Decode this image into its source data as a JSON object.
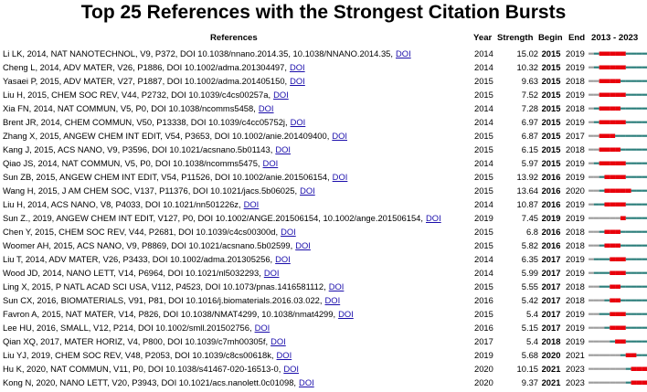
{
  "chart_data": {
    "type": "table",
    "title": "Top 25 References with the Strongest Citation Bursts",
    "columns": {
      "references": "References",
      "year": "Year",
      "strength": "Strength",
      "begin": "Begin",
      "end": "End",
      "timeline": "2013 - 2023"
    },
    "timeline_range": [
      2013,
      2023
    ],
    "doi_label": "DOI",
    "colors": {
      "baseline": "#2e7f7c",
      "burst": "#e8000b",
      "inactive": "#9e9e9e",
      "link": "#1a0dab"
    },
    "rows": [
      {
        "ref": "Li LK, 2014, NAT NANOTECHNOL, V9, P372, DOI 10.1038/nnano.2014.35, 10.1038/NNANO.2014.35,",
        "year": "2014",
        "strength": "15.02",
        "begin": "2015",
        "end": "2019"
      },
      {
        "ref": "Cheng L, 2014, ADV MATER, V26, P1886, DOI 10.1002/adma.201304497,",
        "year": "2014",
        "strength": "10.32",
        "begin": "2015",
        "end": "2019"
      },
      {
        "ref": "Yasaei P, 2015, ADV MATER, V27, P1887, DOI 10.1002/adma.201405150,",
        "year": "2015",
        "strength": "9.63",
        "begin": "2015",
        "end": "2018"
      },
      {
        "ref": "Liu H, 2015, CHEM SOC REV, V44, P2732, DOI 10.1039/c4cs00257a,",
        "year": "2015",
        "strength": "7.52",
        "begin": "2015",
        "end": "2019"
      },
      {
        "ref": "Xia FN, 2014, NAT COMMUN, V5, P0, DOI 10.1038/ncomms5458,",
        "year": "2014",
        "strength": "7.28",
        "begin": "2015",
        "end": "2018"
      },
      {
        "ref": "Brent JR, 2014, CHEM COMMUN, V50, P13338, DOI 10.1039/c4cc05752j,",
        "year": "2014",
        "strength": "6.97",
        "begin": "2015",
        "end": "2019"
      },
      {
        "ref": "Zhang X, 2015, ANGEW CHEM INT EDIT, V54, P3653, DOI 10.1002/anie.201409400,",
        "year": "2015",
        "strength": "6.87",
        "begin": "2015",
        "end": "2017"
      },
      {
        "ref": "Kang J, 2015, ACS NANO, V9, P3596, DOI 10.1021/acsnano.5b01143,",
        "year": "2015",
        "strength": "6.15",
        "begin": "2015",
        "end": "2018"
      },
      {
        "ref": "Qiao JS, 2014, NAT COMMUN, V5, P0, DOI 10.1038/ncomms5475,",
        "year": "2014",
        "strength": "5.97",
        "begin": "2015",
        "end": "2019"
      },
      {
        "ref": "Sun ZB, 2015, ANGEW CHEM INT EDIT, V54, P11526, DOI 10.1002/anie.201506154,",
        "year": "2015",
        "strength": "13.92",
        "begin": "2016",
        "end": "2019"
      },
      {
        "ref": "Wang H, 2015, J AM CHEM SOC, V137, P11376, DOI 10.1021/jacs.5b06025,",
        "year": "2015",
        "strength": "13.64",
        "begin": "2016",
        "end": "2020"
      },
      {
        "ref": "Liu H, 2014, ACS NANO, V8, P4033, DOI 10.1021/nn501226z,",
        "year": "2014",
        "strength": "10.87",
        "begin": "2016",
        "end": "2019"
      },
      {
        "ref": "Sun Z., 2019, ANGEW CHEM INT EDIT, V127, P0, DOI 10.1002/ANGE.201506154, 10.1002/ange.201506154,",
        "year": "2019",
        "strength": "7.45",
        "begin": "2019",
        "end": "2019"
      },
      {
        "ref": "Chen Y, 2015, CHEM SOC REV, V44, P2681, DOI 10.1039/c4cs00300d,",
        "year": "2015",
        "strength": "6.8",
        "begin": "2016",
        "end": "2018"
      },
      {
        "ref": "Woomer AH, 2015, ACS NANO, V9, P8869, DOI 10.1021/acsnano.5b02599,",
        "year": "2015",
        "strength": "5.82",
        "begin": "2016",
        "end": "2018"
      },
      {
        "ref": "Liu T, 2014, ADV MATER, V26, P3433, DOI 10.1002/adma.201305256,",
        "year": "2014",
        "strength": "6.35",
        "begin": "2017",
        "end": "2019"
      },
      {
        "ref": "Wood JD, 2014, NANO LETT, V14, P6964, DOI 10.1021/nl5032293,",
        "year": "2014",
        "strength": "5.99",
        "begin": "2017",
        "end": "2019"
      },
      {
        "ref": "Ling X, 2015, P NATL ACAD SCI USA, V112, P4523, DOI 10.1073/pnas.1416581112,",
        "year": "2015",
        "strength": "5.55",
        "begin": "2017",
        "end": "2018"
      },
      {
        "ref": "Sun CX, 2016, BIOMATERIALS, V91, P81, DOI 10.1016/j.biomaterials.2016.03.022,",
        "year": "2016",
        "strength": "5.42",
        "begin": "2017",
        "end": "2018"
      },
      {
        "ref": "Favron A, 2015, NAT MATER, V14, P826, DOI 10.1038/NMAT4299, 10.1038/nmat4299,",
        "year": "2015",
        "strength": "5.4",
        "begin": "2017",
        "end": "2019"
      },
      {
        "ref": "Lee HU, 2016, SMALL, V12, P214, DOI 10.1002/smll.201502756,",
        "year": "2016",
        "strength": "5.15",
        "begin": "2017",
        "end": "2019"
      },
      {
        "ref": "Qian XQ, 2017, MATER HORIZ, V4, P800, DOI 10.1039/c7mh00305f,",
        "year": "2017",
        "strength": "5.4",
        "begin": "2018",
        "end": "2019"
      },
      {
        "ref": "Liu YJ, 2019, CHEM SOC REV, V48, P2053, DOI 10.1039/c8cs00618k,",
        "year": "2019",
        "strength": "5.68",
        "begin": "2020",
        "end": "2021"
      },
      {
        "ref": "Hu K, 2020, NAT COMMUN, V11, P0, DOI 10.1038/s41467-020-16513-0,",
        "year": "2020",
        "strength": "10.15",
        "begin": "2021",
        "end": "2023"
      },
      {
        "ref": "Kong N, 2020, NANO LETT, V20, P3943, DOI 10.1021/acs.nanolett.0c01098,",
        "year": "2020",
        "strength": "9.37",
        "begin": "2021",
        "end": "2023"
      }
    ]
  }
}
